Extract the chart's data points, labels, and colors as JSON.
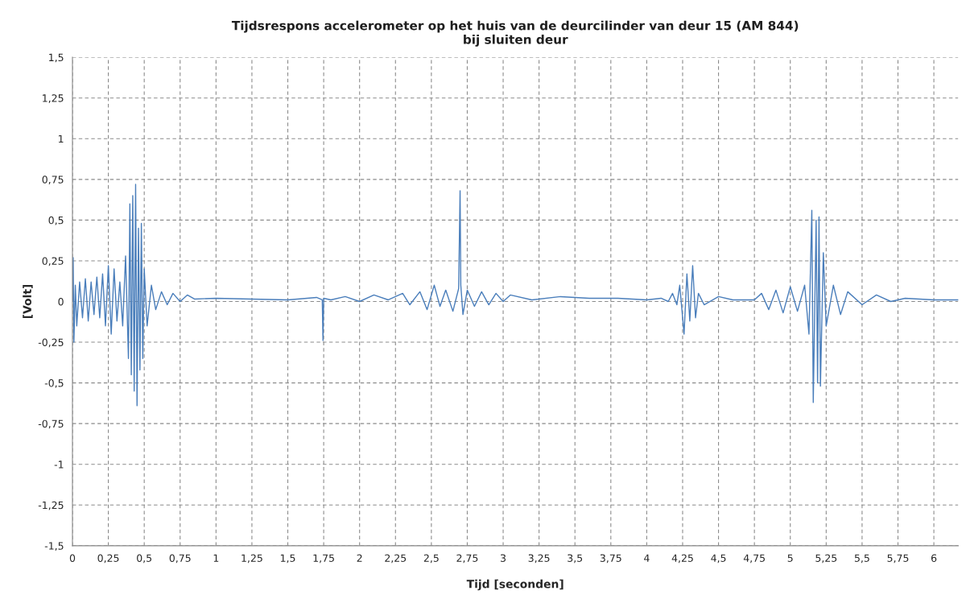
{
  "chart_data": {
    "type": "line",
    "title": "Tijdsrespons accelerometer op het huis van de deurcilinder van deur 15 (AM 844)\nbij sluiten deur",
    "xlabel": "Tijd [seconden]",
    "ylabel": "[Volt]",
    "x": [
      0,
      0.005,
      0.01,
      0.02,
      0.03,
      0.05,
      0.07,
      0.09,
      0.11,
      0.13,
      0.15,
      0.17,
      0.19,
      0.21,
      0.23,
      0.25,
      0.27,
      0.29,
      0.31,
      0.33,
      0.35,
      0.37,
      0.39,
      0.4,
      0.41,
      0.42,
      0.43,
      0.44,
      0.45,
      0.46,
      0.47,
      0.48,
      0.49,
      0.5,
      0.52,
      0.55,
      0.58,
      0.62,
      0.66,
      0.7,
      0.75,
      0.8,
      0.85,
      1.0,
      1.25,
      1.5,
      1.7,
      1.74,
      1.745,
      1.75,
      1.8,
      1.9,
      2.0,
      2.1,
      2.2,
      2.3,
      2.35,
      2.42,
      2.47,
      2.52,
      2.56,
      2.6,
      2.65,
      2.69,
      2.7,
      2.705,
      2.72,
      2.75,
      2.8,
      2.85,
      2.9,
      2.95,
      3.0,
      3.05,
      3.2,
      3.4,
      3.6,
      3.8,
      4.0,
      4.1,
      4.15,
      4.18,
      4.21,
      4.23,
      4.26,
      4.28,
      4.3,
      4.32,
      4.34,
      4.36,
      4.4,
      4.5,
      4.6,
      4.75,
      4.8,
      4.85,
      4.9,
      4.95,
      5.0,
      5.05,
      5.1,
      5.13,
      5.15,
      5.16,
      5.18,
      5.19,
      5.2,
      5.21,
      5.23,
      5.25,
      5.3,
      5.35,
      5.4,
      5.5,
      5.6,
      5.7,
      5.8,
      6.0,
      6.17
    ],
    "series": [
      {
        "color": "#4a7ebb",
        "values": [
          0,
          0.27,
          -0.25,
          0.1,
          -0.15,
          0.12,
          -0.1,
          0.14,
          -0.12,
          0.12,
          -0.08,
          0.15,
          -0.1,
          0.17,
          -0.15,
          0.22,
          -0.2,
          0.2,
          -0.12,
          0.12,
          -0.15,
          0.28,
          -0.35,
          0.6,
          -0.45,
          0.65,
          -0.55,
          0.72,
          -0.64,
          0.45,
          -0.42,
          0.48,
          -0.35,
          0.2,
          -0.15,
          0.1,
          -0.05,
          0.06,
          -0.02,
          0.05,
          0.0,
          0.04,
          0.015,
          0.02,
          0.015,
          0.01,
          0.025,
          0.01,
          -0.24,
          0.02,
          0.01,
          0.03,
          0.0,
          0.04,
          0.01,
          0.05,
          -0.02,
          0.06,
          -0.05,
          0.1,
          -0.03,
          0.07,
          -0.06,
          0.08,
          0.68,
          0.1,
          -0.08,
          0.07,
          -0.03,
          0.06,
          -0.02,
          0.05,
          0.0,
          0.04,
          0.01,
          0.03,
          0.02,
          0.02,
          0.01,
          0.02,
          0.0,
          0.05,
          -0.02,
          0.1,
          -0.2,
          0.17,
          -0.12,
          0.22,
          -0.1,
          0.05,
          -0.02,
          0.03,
          0.01,
          0.01,
          0.05,
          -0.05,
          0.07,
          -0.07,
          0.09,
          -0.06,
          0.1,
          -0.2,
          0.56,
          -0.62,
          0.5,
          -0.5,
          0.52,
          -0.52,
          0.3,
          -0.15,
          0.1,
          -0.08,
          0.06,
          -0.02,
          0.04,
          0.0,
          0.02,
          0.01,
          0.01
        ]
      }
    ],
    "xlim": [
      0,
      6.17
    ],
    "xticks": [
      0,
      {
        "value": 0.25,
        "label": "0,25"
      },
      {
        "value": 0.5,
        "label": "0,5"
      },
      {
        "value": 0.75,
        "label": "0,75"
      },
      1,
      {
        "value": 1.25,
        "label": "1,25"
      },
      {
        "value": 1.5,
        "label": "1,5"
      },
      {
        "value": 1.75,
        "label": "1,75"
      },
      2,
      {
        "value": 2.25,
        "label": "2,25"
      },
      {
        "value": 2.5,
        "label": "2,5"
      },
      {
        "value": 2.75,
        "label": "2,75"
      },
      3,
      {
        "value": 3.25,
        "label": "3,25"
      },
      {
        "value": 3.5,
        "label": "3,5"
      },
      {
        "value": 3.75,
        "label": "3,75"
      },
      4,
      {
        "value": 4.25,
        "label": "4,25"
      },
      {
        "value": 4.5,
        "label": "4,5"
      },
      {
        "value": 4.75,
        "label": "4,75"
      },
      5,
      {
        "value": 5.25,
        "label": "5,25"
      },
      {
        "value": 5.5,
        "label": "5,5"
      },
      {
        "value": 5.75,
        "label": "5,75"
      },
      6
    ],
    "ylim": [
      -1.5,
      1.5
    ],
    "yticks": [
      {
        "value": -1.5,
        "label": "-1,5"
      },
      {
        "value": -1.25,
        "label": "-1,25"
      },
      -1,
      {
        "value": -0.75,
        "label": "-0,75"
      },
      {
        "value": -0.5,
        "label": "-0,5"
      },
      {
        "value": -0.25,
        "label": "-0,25"
      },
      0,
      {
        "value": 0.25,
        "label": "0,25"
      },
      {
        "value": 0.5,
        "label": "0,5"
      },
      {
        "value": 0.75,
        "label": "0,75"
      },
      1,
      {
        "value": 1.25,
        "label": "1,25"
      },
      {
        "value": 1.5,
        "label": "1,5"
      }
    ],
    "grid": true,
    "line_style": "solid"
  }
}
